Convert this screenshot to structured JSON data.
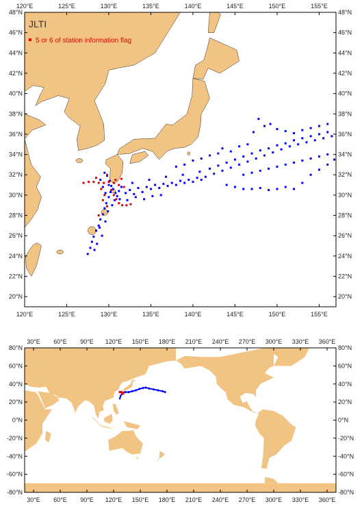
{
  "colors": {
    "land": "#f2c483",
    "station": "#0000ff",
    "flagged": "#e00000",
    "frame": "#000000"
  },
  "top_map": {
    "title": "JLTI",
    "legend_label": "5 or 6 of station information flag",
    "lon_range": [
      120,
      157
    ],
    "lat_range": [
      19,
      48
    ],
    "lon_ticks": [
      120,
      125,
      130,
      135,
      140,
      145,
      150,
      155
    ],
    "lon_labels": [
      "120°E",
      "125°E",
      "130°E",
      "135°E",
      "140°E",
      "145°E",
      "150°E",
      "155°E"
    ],
    "lat_ticks": [
      20,
      22,
      24,
      26,
      28,
      30,
      32,
      34,
      36,
      38,
      40,
      42,
      44,
      46,
      48
    ],
    "lat_labels": [
      "20°N",
      "22°N",
      "24°N",
      "26°N",
      "28°N",
      "30°N",
      "32°N",
      "34°N",
      "36°N",
      "38°N",
      "40°N",
      "42°N",
      "44°N",
      "46°N",
      "48°N"
    ]
  },
  "bottom_map": {
    "lon_range": [
      20,
      370
    ],
    "lat_range": [
      -80,
      80
    ],
    "lon_ticks": [
      30,
      60,
      90,
      120,
      150,
      180,
      210,
      240,
      270,
      300,
      330,
      360
    ],
    "lon_labels": [
      "30°E",
      "60°E",
      "90°E",
      "120°E",
      "150°E",
      "180°E",
      "210°E",
      "240°E",
      "270°E",
      "300°E",
      "330°E",
      "360°E"
    ],
    "lat_ticks": [
      -80,
      -60,
      -40,
      -20,
      0,
      20,
      40,
      60,
      80
    ],
    "lat_labels": [
      "-80°N",
      "-60°N",
      "-40°N",
      "-20°N",
      "0°N",
      "20°N",
      "40°N",
      "60°N",
      "80°N"
    ]
  },
  "stations": {
    "blue": [
      [
        127.5,
        24.2
      ],
      [
        127.8,
        24.8
      ],
      [
        128.0,
        25.4
      ],
      [
        128.2,
        25.9
      ],
      [
        128.5,
        26.5
      ],
      [
        128.8,
        27.0
      ],
      [
        129.0,
        27.6
      ],
      [
        129.3,
        28.1
      ],
      [
        129.5,
        28.7
      ],
      [
        129.7,
        29.2
      ],
      [
        130.0,
        29.8
      ],
      [
        130.2,
        30.3
      ],
      [
        130.3,
        30.9
      ],
      [
        130.1,
        31.4
      ],
      [
        129.8,
        31.9
      ],
      [
        129.5,
        32.2
      ],
      [
        130.5,
        30.6
      ],
      [
        130.8,
        30.2
      ],
      [
        131.0,
        29.9
      ],
      [
        131.3,
        29.6
      ],
      [
        128.3,
        24.6
      ],
      [
        128.6,
        25.2
      ],
      [
        129.2,
        26.0
      ],
      [
        128.9,
        26.8
      ],
      [
        129.6,
        27.4
      ],
      [
        129.9,
        28.4
      ],
      [
        130.4,
        29.0
      ],
      [
        130.7,
        29.5
      ],
      [
        131.2,
        30.4
      ],
      [
        131.5,
        30.8
      ],
      [
        132.0,
        30.2
      ],
      [
        132.5,
        30.5
      ],
      [
        133.0,
        30.1
      ],
      [
        133.5,
        30.7
      ],
      [
        134.0,
        30.3
      ],
      [
        134.5,
        30.8
      ],
      [
        135.0,
        30.6
      ],
      [
        135.5,
        31.0
      ],
      [
        136.0,
        30.7
      ],
      [
        136.5,
        31.1
      ],
      [
        137.0,
        30.9
      ],
      [
        137.5,
        31.2
      ],
      [
        138.0,
        31.0
      ],
      [
        138.5,
        31.4
      ],
      [
        139.0,
        31.2
      ],
      [
        139.5,
        31.5
      ],
      [
        140.0,
        31.3
      ],
      [
        140.5,
        31.7
      ],
      [
        141.0,
        31.5
      ],
      [
        141.5,
        31.8
      ],
      [
        132.2,
        29.5
      ],
      [
        133.2,
        29.8
      ],
      [
        134.2,
        29.6
      ],
      [
        135.2,
        29.9
      ],
      [
        136.2,
        30.0
      ],
      [
        132.8,
        31.2
      ],
      [
        134.8,
        31.5
      ],
      [
        136.8,
        31.8
      ],
      [
        138.8,
        32.0
      ],
      [
        140.8,
        32.3
      ],
      [
        142.0,
        32.6
      ],
      [
        142.5,
        32.1
      ],
      [
        143.0,
        32.9
      ],
      [
        143.5,
        32.4
      ],
      [
        144.0,
        33.2
      ],
      [
        144.5,
        32.7
      ],
      [
        145.0,
        33.5
      ],
      [
        145.5,
        33.0
      ],
      [
        146.0,
        33.8
      ],
      [
        146.5,
        33.3
      ],
      [
        147.0,
        34.1
      ],
      [
        147.5,
        33.6
      ],
      [
        148.0,
        34.4
      ],
      [
        148.5,
        33.9
      ],
      [
        149.0,
        34.6
      ],
      [
        149.5,
        34.2
      ],
      [
        150.0,
        34.9
      ],
      [
        150.5,
        34.5
      ],
      [
        151.0,
        35.1
      ],
      [
        151.5,
        34.8
      ],
      [
        152.0,
        35.4
      ],
      [
        152.5,
        35.0
      ],
      [
        153.0,
        35.6
      ],
      [
        153.5,
        35.2
      ],
      [
        154.0,
        35.8
      ],
      [
        154.5,
        35.4
      ],
      [
        155.0,
        36.0
      ],
      [
        155.5,
        35.6
      ],
      [
        156.0,
        36.2
      ],
      [
        156.5,
        35.8
      ],
      [
        144.0,
        31.0
      ],
      [
        145.0,
        30.8
      ],
      [
        146.0,
        30.6
      ],
      [
        147.0,
        30.6
      ],
      [
        148.0,
        30.7
      ],
      [
        149.0,
        30.5
      ],
      [
        150.0,
        30.6
      ],
      [
        151.0,
        30.8
      ],
      [
        152.0,
        30.6
      ],
      [
        153.0,
        31.2
      ],
      [
        154.0,
        32.0
      ],
      [
        155.0,
        32.5
      ],
      [
        156.0,
        33.0
      ],
      [
        156.8,
        33.5
      ],
      [
        146.5,
        35.0
      ],
      [
        147.2,
        36.2
      ],
      [
        147.8,
        37.5
      ],
      [
        148.5,
        36.8
      ],
      [
        149.2,
        37.0
      ],
      [
        150.0,
        36.5
      ],
      [
        151.0,
        36.3
      ],
      [
        152.0,
        36.1
      ],
      [
        153.0,
        36.4
      ],
      [
        154.0,
        36.6
      ],
      [
        155.0,
        36.8
      ],
      [
        156.0,
        37.0
      ],
      [
        143.5,
        34.6
      ],
      [
        144.5,
        34.3
      ],
      [
        145.5,
        34.8
      ],
      [
        146.0,
        32.0
      ],
      [
        147.0,
        32.2
      ],
      [
        148.0,
        32.4
      ],
      [
        149.0,
        32.6
      ],
      [
        150.0,
        32.8
      ],
      [
        151.0,
        33.0
      ],
      [
        152.0,
        33.2
      ],
      [
        153.0,
        33.4
      ],
      [
        154.0,
        33.6
      ],
      [
        155.0,
        33.8
      ],
      [
        156.0,
        34.0
      ],
      [
        138.0,
        32.8
      ],
      [
        139.0,
        33.0
      ],
      [
        140.0,
        33.4
      ],
      [
        141.0,
        33.6
      ],
      [
        142.0,
        33.9
      ],
      [
        143.0,
        34.1
      ],
      [
        129.0,
        31.5
      ],
      [
        129.3,
        30.8
      ],
      [
        129.6,
        30.2
      ],
      [
        130.0,
        31.0
      ]
    ],
    "flagged": [
      [
        127.0,
        31.2
      ],
      [
        127.6,
        31.3
      ],
      [
        128.2,
        31.3
      ],
      [
        128.8,
        31.2
      ],
      [
        129.4,
        31.2
      ],
      [
        130.0,
        31.3
      ],
      [
        130.6,
        31.2
      ],
      [
        131.2,
        31.0
      ],
      [
        131.8,
        30.8
      ],
      [
        130.3,
        30.5
      ],
      [
        130.6,
        30.0
      ],
      [
        130.9,
        29.6
      ],
      [
        131.2,
        29.2
      ],
      [
        131.6,
        29.0
      ],
      [
        132.1,
        29.0
      ],
      [
        132.6,
        29.1
      ],
      [
        129.5,
        30.0
      ],
      [
        129.3,
        29.5
      ],
      [
        129.8,
        28.9
      ],
      [
        128.8,
        28.0
      ],
      [
        129.1,
        30.6
      ],
      [
        130.8,
        31.5
      ],
      [
        131.5,
        31.6
      ],
      [
        128.5,
        31.7
      ],
      [
        129.8,
        32.0
      ]
    ]
  },
  "world_stations": {
    "blue": [
      [
        127,
        24
      ],
      [
        128,
        27
      ],
      [
        130,
        30
      ],
      [
        133,
        31
      ],
      [
        137,
        31
      ],
      [
        141,
        32
      ],
      [
        145,
        33
      ],
      [
        149,
        34.5
      ],
      [
        153,
        35.5
      ],
      [
        156,
        36
      ],
      [
        160,
        35
      ],
      [
        165,
        34
      ],
      [
        170,
        33
      ],
      [
        175,
        32
      ],
      [
        178,
        31
      ]
    ],
    "flagged": [
      [
        127,
        31
      ],
      [
        129,
        31
      ],
      [
        131,
        30
      ],
      [
        130,
        29
      ]
    ]
  }
}
